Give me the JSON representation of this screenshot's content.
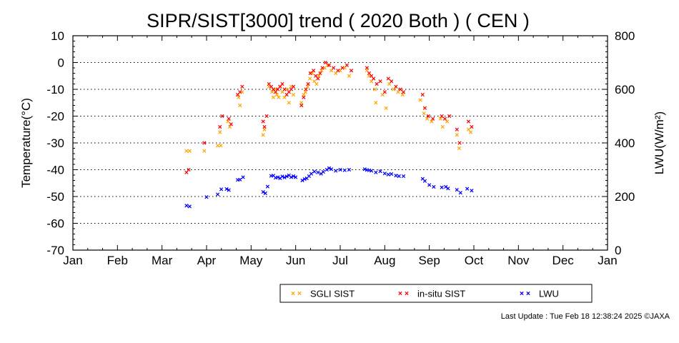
{
  "chart_data": {
    "type": "scatter",
    "title": "SIPR/SIST[3000] trend ( 2020 Both ) ( CEN )",
    "ylabel_left": "Temperature(°C)",
    "ylabel_right": "LWU(W/m²)",
    "x_tick_labels": [
      "Jan",
      "Feb",
      "Mar",
      "Apr",
      "May",
      "Jun",
      "Jul",
      "Aug",
      "Sep",
      "Oct",
      "Nov",
      "Dec",
      "Jan"
    ],
    "ylim_left": [
      -70,
      10
    ],
    "yticks_left": [
      10,
      0,
      -10,
      -20,
      -30,
      -40,
      -50,
      -60,
      -70
    ],
    "ylim_right": [
      0,
      800
    ],
    "yticks_right": [
      800,
      600,
      400,
      200,
      0
    ],
    "grid": "dotted horizontal",
    "legend_position": "bottom-right",
    "series": [
      {
        "name": "SGLI SIST",
        "color": "#FFA500",
        "axis": "left",
        "points": [
          [
            2.55,
            -33
          ],
          [
            2.62,
            -33
          ],
          [
            2.95,
            -33
          ],
          [
            3.25,
            -31
          ],
          [
            3.32,
            -31
          ],
          [
            3.3,
            -26
          ],
          [
            3.48,
            -22
          ],
          [
            3.52,
            -24
          ],
          [
            3.72,
            -13
          ],
          [
            3.75,
            -16
          ],
          [
            3.8,
            -11
          ],
          [
            4.27,
            -27
          ],
          [
            4.3,
            -25
          ],
          [
            4.4,
            -9
          ],
          [
            4.47,
            -11
          ],
          [
            4.5,
            -13
          ],
          [
            4.55,
            -10
          ],
          [
            4.58,
            -12
          ],
          [
            4.62,
            -13
          ],
          [
            4.65,
            -9
          ],
          [
            4.7,
            -11
          ],
          [
            4.75,
            -13
          ],
          [
            4.8,
            -10
          ],
          [
            4.85,
            -15
          ],
          [
            4.9,
            -9
          ],
          [
            4.95,
            -12
          ],
          [
            5.13,
            -15
          ],
          [
            5.18,
            -12
          ],
          [
            5.22,
            -11
          ],
          [
            5.27,
            -9
          ],
          [
            5.32,
            -6
          ],
          [
            5.37,
            -4
          ],
          [
            5.42,
            -7
          ],
          [
            5.47,
            -8
          ],
          [
            5.52,
            -5
          ],
          [
            5.58,
            -3
          ],
          [
            5.65,
            -2
          ],
          [
            5.72,
            -1
          ],
          [
            5.8,
            -3
          ],
          [
            5.9,
            -4
          ],
          [
            6.0,
            -3
          ],
          [
            6.1,
            -2
          ],
          [
            6.2,
            -5
          ],
          [
            6.6,
            -3
          ],
          [
            6.65,
            -5
          ],
          [
            6.7,
            -7
          ],
          [
            6.78,
            -10
          ],
          [
            6.8,
            -15
          ],
          [
            6.95,
            -12
          ],
          [
            7.03,
            -17
          ],
          [
            7.1,
            -8
          ],
          [
            7.2,
            -10
          ],
          [
            7.3,
            -11
          ],
          [
            7.4,
            -12
          ],
          [
            7.8,
            -14
          ],
          [
            7.88,
            -19
          ],
          [
            7.95,
            -21
          ],
          [
            8.05,
            -22
          ],
          [
            8.25,
            -21
          ],
          [
            8.3,
            -24
          ],
          [
            8.4,
            -22
          ],
          [
            8.62,
            -27
          ],
          [
            8.67,
            -32
          ],
          [
            8.88,
            -25
          ],
          [
            8.93,
            -26
          ]
        ]
      },
      {
        "name": "in-situ SIST",
        "color": "#FF0000",
        "axis": "left",
        "points": [
          [
            2.55,
            -41
          ],
          [
            2.6,
            -40
          ],
          [
            2.95,
            -30
          ],
          [
            3.3,
            -24
          ],
          [
            3.35,
            -20
          ],
          [
            3.5,
            -21
          ],
          [
            3.55,
            -23
          ],
          [
            3.7,
            -12
          ],
          [
            3.75,
            -11
          ],
          [
            3.8,
            -9
          ],
          [
            4.27,
            -22
          ],
          [
            4.3,
            -24
          ],
          [
            4.35,
            -20
          ],
          [
            4.4,
            -8
          ],
          [
            4.45,
            -9
          ],
          [
            4.5,
            -10
          ],
          [
            4.55,
            -11
          ],
          [
            4.6,
            -10
          ],
          [
            4.65,
            -9
          ],
          [
            4.7,
            -8
          ],
          [
            4.75,
            -10
          ],
          [
            4.8,
            -12
          ],
          [
            4.85,
            -11
          ],
          [
            4.9,
            -10
          ],
          [
            4.95,
            -9
          ],
          [
            5.13,
            -16
          ],
          [
            5.18,
            -13
          ],
          [
            5.23,
            -10
          ],
          [
            5.28,
            -8
          ],
          [
            5.33,
            -4
          ],
          [
            5.4,
            -3
          ],
          [
            5.45,
            -5
          ],
          [
            5.5,
            -6
          ],
          [
            5.55,
            -4
          ],
          [
            5.6,
            -2
          ],
          [
            5.67,
            0
          ],
          [
            5.75,
            -1
          ],
          [
            5.85,
            -2
          ],
          [
            5.95,
            -3
          ],
          [
            6.05,
            -2
          ],
          [
            6.15,
            -1
          ],
          [
            6.25,
            -3
          ],
          [
            6.6,
            -2
          ],
          [
            6.65,
            -4
          ],
          [
            6.7,
            -5
          ],
          [
            6.75,
            -6
          ],
          [
            6.82,
            -8
          ],
          [
            6.9,
            -7
          ],
          [
            7.0,
            -11
          ],
          [
            7.08,
            -6
          ],
          [
            7.15,
            -7
          ],
          [
            7.25,
            -9
          ],
          [
            7.35,
            -10
          ],
          [
            7.42,
            -11
          ],
          [
            7.85,
            -12
          ],
          [
            7.9,
            -17
          ],
          [
            7.98,
            -20
          ],
          [
            8.08,
            -21
          ],
          [
            8.28,
            -20
          ],
          [
            8.35,
            -21
          ],
          [
            8.45,
            -20
          ],
          [
            8.62,
            -25
          ],
          [
            8.68,
            -30
          ],
          [
            8.88,
            -22
          ],
          [
            8.95,
            -24
          ]
        ]
      },
      {
        "name": "LWU",
        "color": "#0000FF",
        "axis": "right",
        "points": [
          [
            2.55,
            166
          ],
          [
            2.62,
            163
          ],
          [
            3.0,
            198
          ],
          [
            3.25,
            208
          ],
          [
            3.33,
            227
          ],
          [
            3.45,
            228
          ],
          [
            3.5,
            224
          ],
          [
            3.7,
            262
          ],
          [
            3.75,
            263
          ],
          [
            3.82,
            272
          ],
          [
            4.27,
            217
          ],
          [
            4.32,
            212
          ],
          [
            4.37,
            237
          ],
          [
            4.45,
            277
          ],
          [
            4.5,
            278
          ],
          [
            4.55,
            270
          ],
          [
            4.6,
            272
          ],
          [
            4.65,
            268
          ],
          [
            4.7,
            275
          ],
          [
            4.75,
            271
          ],
          [
            4.8,
            275
          ],
          [
            4.85,
            279
          ],
          [
            4.9,
            272
          ],
          [
            4.95,
            276
          ],
          [
            5.0,
            272
          ],
          [
            5.15,
            260
          ],
          [
            5.2,
            265
          ],
          [
            5.25,
            268
          ],
          [
            5.3,
            276
          ],
          [
            5.35,
            285
          ],
          [
            5.42,
            293
          ],
          [
            5.5,
            290
          ],
          [
            5.57,
            285
          ],
          [
            5.62,
            292
          ],
          [
            5.7,
            300
          ],
          [
            5.75,
            306
          ],
          [
            5.8,
            302
          ],
          [
            5.9,
            296
          ],
          [
            6.0,
            300
          ],
          [
            6.1,
            298
          ],
          [
            6.2,
            300
          ],
          [
            6.55,
            302
          ],
          [
            6.6,
            299
          ],
          [
            6.65,
            298
          ],
          [
            6.7,
            296
          ],
          [
            6.8,
            290
          ],
          [
            6.9,
            294
          ],
          [
            7.0,
            286
          ],
          [
            7.08,
            282
          ],
          [
            7.15,
            284
          ],
          [
            7.25,
            278
          ],
          [
            7.32,
            276
          ],
          [
            7.42,
            276
          ],
          [
            7.85,
            266
          ],
          [
            7.9,
            258
          ],
          [
            8.0,
            243
          ],
          [
            8.1,
            236
          ],
          [
            8.28,
            234
          ],
          [
            8.37,
            236
          ],
          [
            8.42,
            230
          ],
          [
            8.62,
            225
          ],
          [
            8.7,
            214
          ],
          [
            8.85,
            229
          ],
          [
            8.95,
            222
          ]
        ]
      }
    ]
  },
  "legend": {
    "items": [
      {
        "label": "SGLI SIST",
        "color": "#FFA500"
      },
      {
        "label": "in-situ SIST",
        "color": "#FF0000"
      },
      {
        "label": "LWU",
        "color": "#0000FF"
      }
    ]
  },
  "footer": {
    "last_update": "Last Update : Tue Feb 18 12:38:24 2025  ©JAXA"
  }
}
